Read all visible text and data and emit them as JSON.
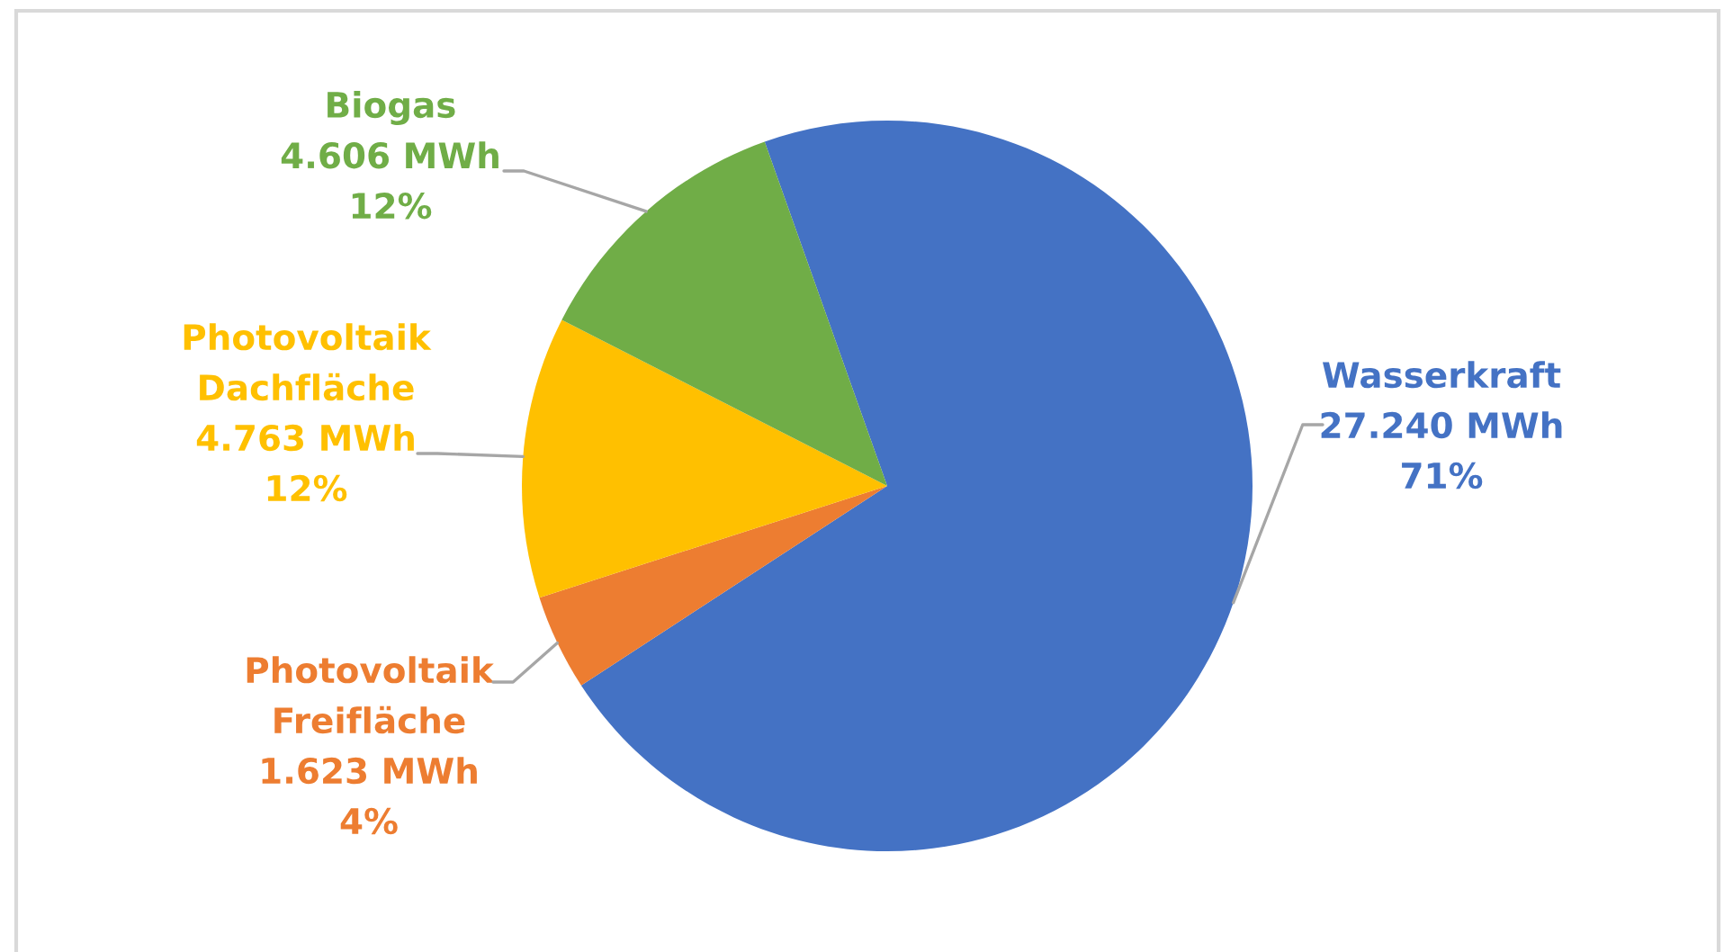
{
  "chart_data": {
    "type": "pie",
    "categories": [
      "Wasserkraft",
      "Photovoltaik Freifläche",
      "Photovoltaik Dachfläche",
      "Biogas"
    ],
    "values": [
      27240,
      1623,
      4763,
      4606
    ],
    "colors": [
      "#4472c4",
      "#ed7d31",
      "#ffc000",
      "#70ad47"
    ],
    "value_labels": [
      "27.240 MWh\n71%",
      "1.623 MWh\n4%",
      "4.763 MWh\n12%",
      "4.606 MWh\n12%"
    ]
  }
}
